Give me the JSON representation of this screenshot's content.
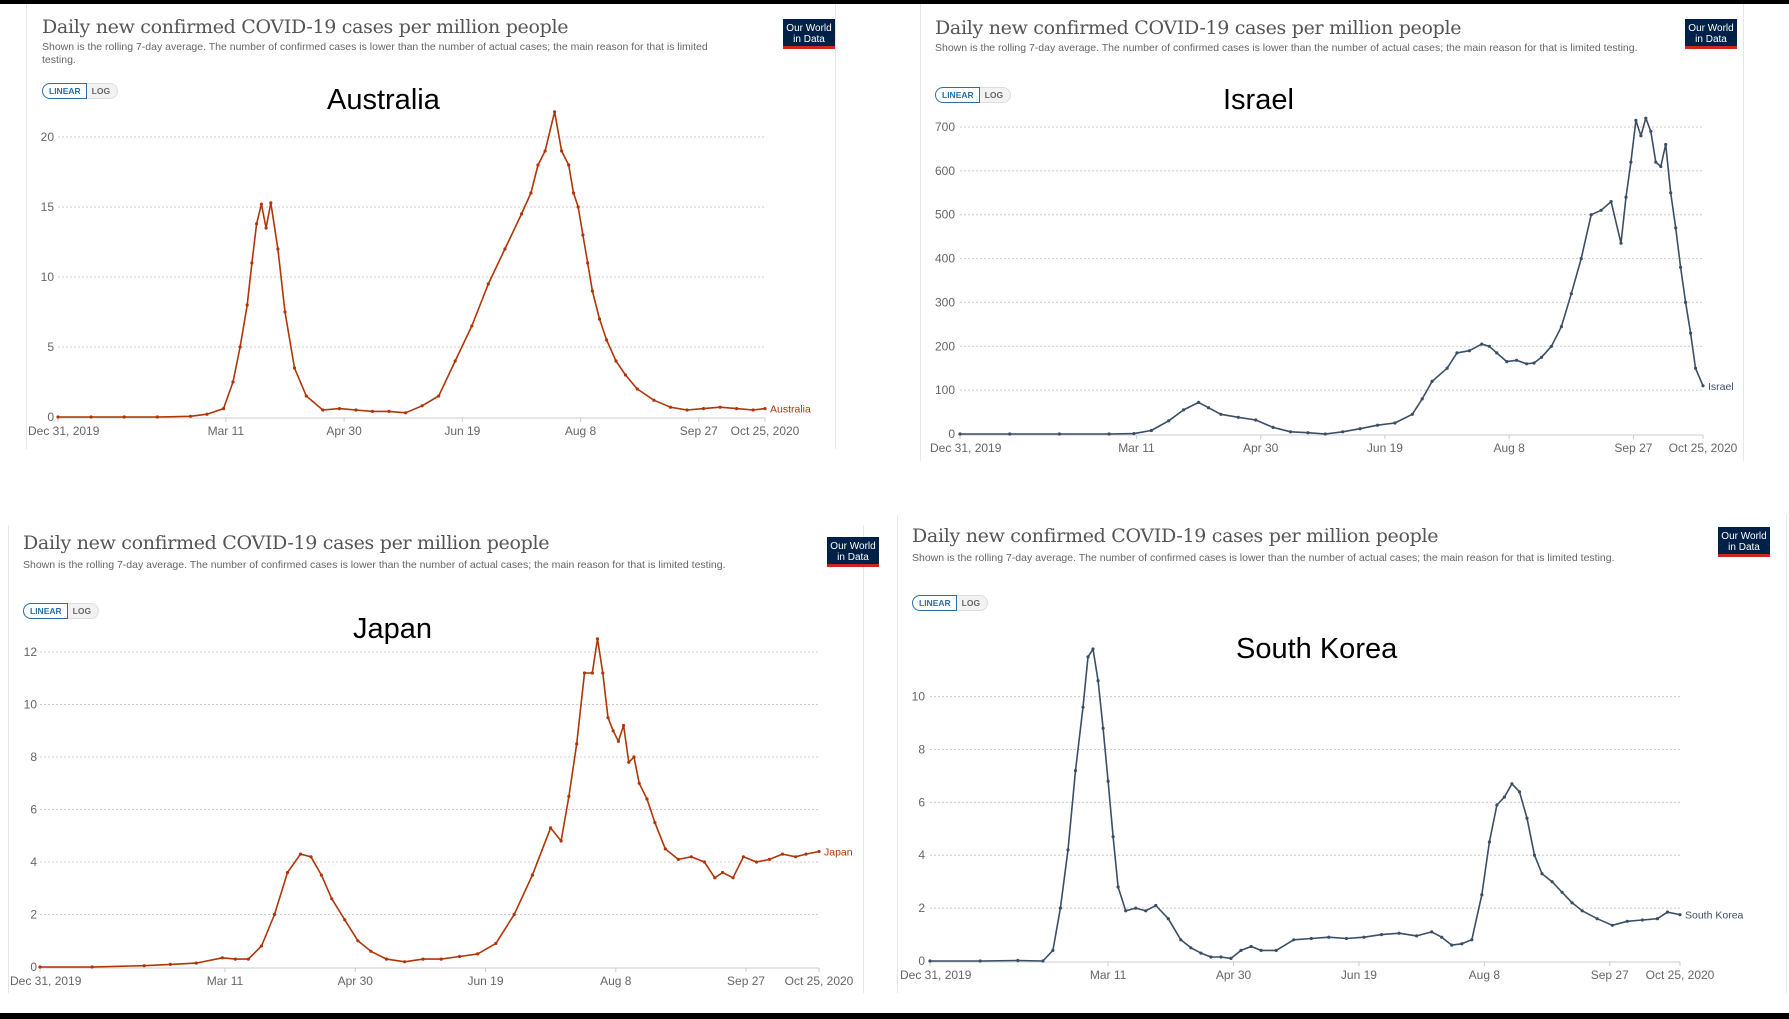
{
  "common": {
    "title": "Daily new confirmed COVID-19 cases per million people",
    "subtitle": "Shown is the rolling 7-day average. The number of confirmed cases is lower than the number of actual cases; the main reason for that is limited testing.",
    "toggle_linear": "LINEAR",
    "toggle_log": "LOG",
    "logo_line1": "Our World",
    "logo_line2": "in Data",
    "x_ticks": [
      "Dec 31, 2019",
      "Mar 11",
      "Apr 30",
      "Jun 19",
      "Aug 8",
      "Sep 27",
      "Oct 25, 2020"
    ]
  },
  "colors": {
    "australia": "#b13507",
    "israel": "#3c4e66",
    "japan": "#b13507",
    "south_korea": "#3c4e66",
    "logo_bg": "#002147",
    "logo_stripe": "#ce261e",
    "toggle_active": "#2a6fa8"
  },
  "chart_data": [
    {
      "type": "line",
      "country_heading": "Australia",
      "series_label": "Australia",
      "title": "Daily new confirmed COVID-19 cases per million people",
      "xlabel": "",
      "ylabel": "",
      "x_range": [
        "Dec 31, 2019",
        "Oct 25, 2020"
      ],
      "ylim": [
        0,
        20
      ],
      "y_ticks": [
        0,
        5,
        10,
        15,
        20
      ],
      "x_days": [
        0,
        14,
        28,
        42,
        56,
        63,
        70,
        74,
        77,
        80,
        82,
        84,
        86,
        88,
        90,
        93,
        96,
        100,
        105,
        112,
        119,
        126,
        133,
        140,
        147,
        154,
        161,
        168,
        175,
        182,
        189,
        196,
        200,
        203,
        206,
        210,
        213,
        216,
        218,
        220,
        222,
        224,
        226,
        229,
        232,
        236,
        240,
        245,
        252,
        259,
        266,
        273,
        280,
        287,
        294,
        299
      ],
      "values": [
        0,
        0,
        0,
        0,
        0.05,
        0.2,
        0.6,
        2.5,
        5,
        8,
        11,
        13.8,
        15.2,
        13.5,
        15.3,
        12,
        7.5,
        3.5,
        1.5,
        0.5,
        0.6,
        0.5,
        0.4,
        0.4,
        0.3,
        0.8,
        1.5,
        4,
        6.5,
        9.5,
        12,
        14.5,
        16,
        18,
        19,
        21.8,
        19,
        18,
        16,
        15,
        13,
        11,
        9,
        7,
        5.5,
        4,
        3,
        2,
        1.2,
        0.7,
        0.5,
        0.6,
        0.7,
        0.6,
        0.5,
        0.6
      ]
    },
    {
      "type": "line",
      "country_heading": "Israel",
      "series_label": "Israel",
      "title": "Daily new confirmed COVID-19 cases per million people",
      "xlabel": "",
      "ylabel": "",
      "x_range": [
        "Dec 31, 2019",
        "Oct 25, 2020"
      ],
      "ylim": [
        0,
        700
      ],
      "y_ticks": [
        0,
        100,
        200,
        300,
        400,
        500,
        600,
        700
      ],
      "x_days": [
        0,
        20,
        40,
        60,
        70,
        77,
        84,
        90,
        96,
        100,
        105,
        112,
        119,
        126,
        133,
        140,
        147,
        154,
        161,
        168,
        175,
        182,
        186,
        190,
        196,
        200,
        205,
        210,
        213,
        216,
        220,
        224,
        228,
        231,
        234,
        238,
        242,
        246,
        250,
        254,
        258,
        262,
        266,
        268,
        270,
        272,
        274,
        276,
        278,
        280,
        282,
        284,
        286,
        288,
        290,
        292,
        294,
        296,
        299
      ],
      "values": [
        0,
        0,
        0,
        0,
        1,
        8,
        30,
        55,
        72,
        60,
        45,
        38,
        32,
        15,
        5,
        3,
        0,
        5,
        12,
        20,
        25,
        45,
        80,
        120,
        150,
        185,
        190,
        205,
        200,
        185,
        165,
        168,
        160,
        162,
        175,
        200,
        245,
        320,
        400,
        500,
        510,
        530,
        435,
        540,
        620,
        715,
        680,
        720,
        690,
        620,
        610,
        660,
        550,
        470,
        380,
        300,
        230,
        150,
        110
      ]
    },
    {
      "type": "line",
      "country_heading": "Japan",
      "series_label": "Japan",
      "title": "Daily new confirmed COVID-19 cases per million people",
      "xlabel": "",
      "ylabel": "",
      "x_range": [
        "Dec 31, 2019",
        "Oct 25, 2020"
      ],
      "ylim": [
        0,
        12
      ],
      "y_ticks": [
        0,
        2,
        4,
        6,
        8,
        10,
        12
      ],
      "x_days": [
        0,
        20,
        40,
        50,
        60,
        70,
        75,
        80,
        85,
        90,
        95,
        100,
        104,
        108,
        112,
        117,
        122,
        127,
        133,
        140,
        147,
        154,
        161,
        168,
        175,
        182,
        189,
        196,
        200,
        203,
        206,
        209,
        212,
        214,
        216,
        218,
        220,
        222,
        224,
        226,
        228,
        230,
        233,
        236,
        240,
        245,
        250,
        255,
        259,
        262,
        266,
        270,
        275,
        280,
        285,
        290,
        294,
        299
      ],
      "values": [
        0,
        0,
        0.05,
        0.1,
        0.15,
        0.35,
        0.3,
        0.3,
        0.8,
        2.0,
        3.6,
        4.3,
        4.2,
        3.5,
        2.6,
        1.8,
        1.0,
        0.6,
        0.3,
        0.2,
        0.3,
        0.3,
        0.4,
        0.5,
        0.9,
        2.0,
        3.5,
        5.3,
        4.8,
        6.5,
        8.5,
        11.2,
        11.2,
        12.5,
        11.2,
        9.5,
        9.0,
        8.6,
        9.2,
        7.8,
        8.0,
        7.0,
        6.4,
        5.5,
        4.5,
        4.1,
        4.2,
        4.0,
        3.4,
        3.6,
        3.4,
        4.2,
        4.0,
        4.1,
        4.3,
        4.2,
        4.3,
        4.4
      ]
    },
    {
      "type": "line",
      "country_heading": "South Korea",
      "series_label": "South Korea",
      "title": "Daily new confirmed COVID-19 cases per million people",
      "xlabel": "",
      "ylabel": "",
      "x_range": [
        "Dec 31, 2019",
        "Oct 25, 2020"
      ],
      "ylim": [
        0,
        11.8
      ],
      "y_ticks": [
        0,
        2,
        4,
        6,
        8,
        10
      ],
      "x_days": [
        0,
        20,
        35,
        45,
        49,
        52,
        55,
        58,
        61,
        63,
        65,
        67,
        69,
        71,
        73,
        75,
        78,
        82,
        86,
        90,
        95,
        100,
        104,
        108,
        112,
        116,
        120,
        124,
        128,
        132,
        138,
        145,
        152,
        159,
        166,
        173,
        180,
        187,
        194,
        200,
        204,
        208,
        212,
        216,
        220,
        223,
        226,
        229,
        232,
        235,
        238,
        241,
        244,
        248,
        252,
        256,
        260,
        266,
        272,
        278,
        284,
        290,
        294,
        299
      ],
      "values": [
        0,
        0,
        0.02,
        0,
        0.4,
        2.0,
        4.2,
        7.2,
        9.6,
        11.5,
        11.8,
        10.6,
        8.8,
        6.8,
        4.7,
        2.8,
        1.9,
        2.0,
        1.9,
        2.1,
        1.6,
        0.8,
        0.5,
        0.3,
        0.15,
        0.15,
        0.1,
        0.4,
        0.55,
        0.4,
        0.4,
        0.8,
        0.85,
        0.9,
        0.85,
        0.9,
        1.0,
        1.05,
        0.95,
        1.1,
        0.9,
        0.6,
        0.65,
        0.8,
        2.5,
        4.5,
        5.9,
        6.2,
        6.7,
        6.4,
        5.4,
        4.0,
        3.3,
        3.0,
        2.6,
        2.2,
        1.9,
        1.6,
        1.35,
        1.5,
        1.55,
        1.6,
        1.85,
        1.75
      ]
    }
  ]
}
